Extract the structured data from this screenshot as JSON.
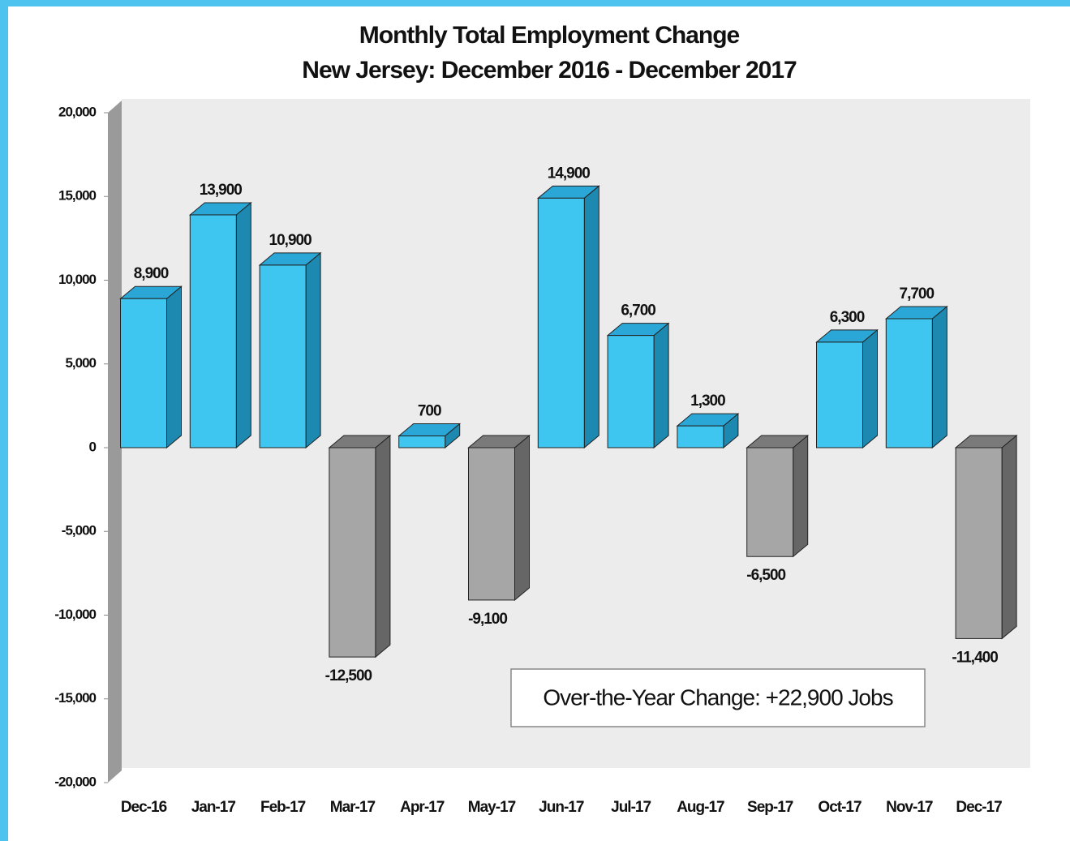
{
  "chart_data": {
    "type": "bar",
    "title": "Monthly Total Employment Change",
    "subtitle": "New Jersey: December 2016 - December 2017",
    "categories": [
      "Dec-16",
      "Jan-17",
      "Feb-17",
      "Mar-17",
      "Apr-17",
      "May-17",
      "Jun-17",
      "Jul-17",
      "Aug-17",
      "Sep-17",
      "Oct-17",
      "Nov-17",
      "Dec-17"
    ],
    "values": [
      8900,
      13900,
      10900,
      -12500,
      700,
      -9100,
      14900,
      6700,
      1300,
      -6500,
      6300,
      7700,
      -11400
    ],
    "value_labels": [
      "8,900",
      "13,900",
      "10,900",
      "-12,500",
      "700",
      "-9,100",
      "14,900",
      "6,700",
      "1,300",
      "-6,500",
      "6,300",
      "7,700",
      "-11,400"
    ],
    "positive_color": "#3ec5f0",
    "negative_color": "#a6a6a6",
    "ylim": [
      -20000,
      20000
    ],
    "yticks": [
      {
        "value": -20000,
        "label": "-20,000"
      },
      {
        "value": -15000,
        "label": "-15,000"
      },
      {
        "value": -10000,
        "label": "-10,000"
      },
      {
        "value": -5000,
        "label": "-5,000"
      },
      0,
      {
        "value": 5000,
        "label": "5,000"
      },
      {
        "value": 10000,
        "label": "10,000"
      },
      {
        "value": 15000,
        "label": "15,000"
      },
      {
        "value": 20000,
        "label": "20,000"
      }
    ],
    "annotation": "Over-the-Year Change: +22,900 Jobs"
  }
}
